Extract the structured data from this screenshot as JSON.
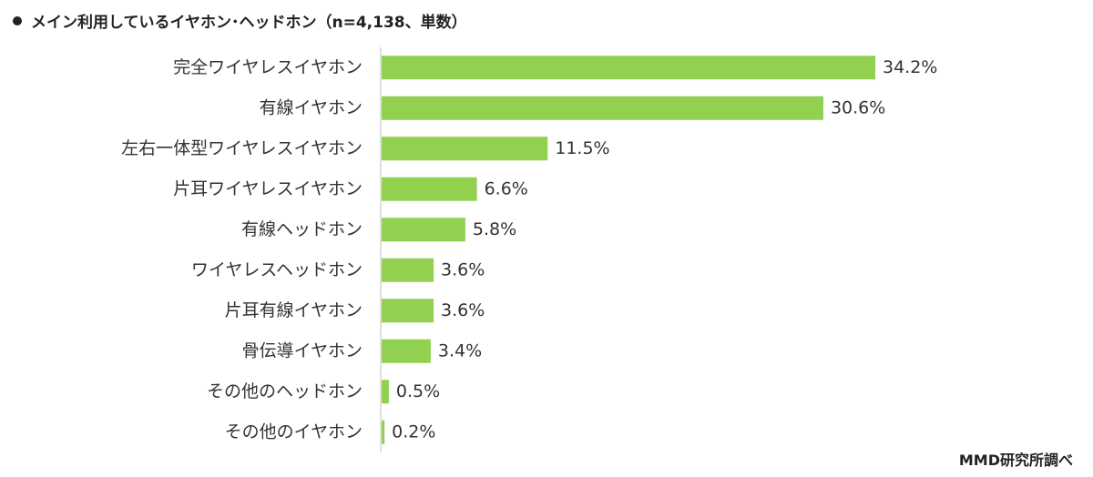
{
  "header": {
    "title": "メイン利用しているイヤホン･ヘッドホン（n=4,138、単数）"
  },
  "footer": {
    "source": "MMD研究所調べ"
  },
  "colors": {
    "bar": "#92d050",
    "axis": "#bfbfbf"
  },
  "chart_data": {
    "type": "bar",
    "orientation": "horizontal",
    "categories": [
      "完全ワイヤレスイヤホン",
      "有線イヤホン",
      "左右一体型ワイヤレスイヤホン",
      "片耳ワイヤレスイヤホン",
      "有線ヘッドホン",
      "ワイヤレスヘッドホン",
      "片耳有線イヤホン",
      "骨伝導イヤホン",
      "その他のヘッドホン",
      "その他のイヤホン"
    ],
    "values": [
      34.2,
      30.6,
      11.5,
      6.6,
      5.8,
      3.6,
      3.6,
      3.4,
      0.5,
      0.2
    ],
    "value_labels": [
      "34.2%",
      "30.6%",
      "11.5%",
      "6.6%",
      "5.8%",
      "3.6%",
      "3.6%",
      "3.4%",
      "0.5%",
      "0.2%"
    ],
    "unit": "%",
    "xlim": [
      0,
      37.5
    ],
    "grid": false,
    "legend": "none"
  }
}
